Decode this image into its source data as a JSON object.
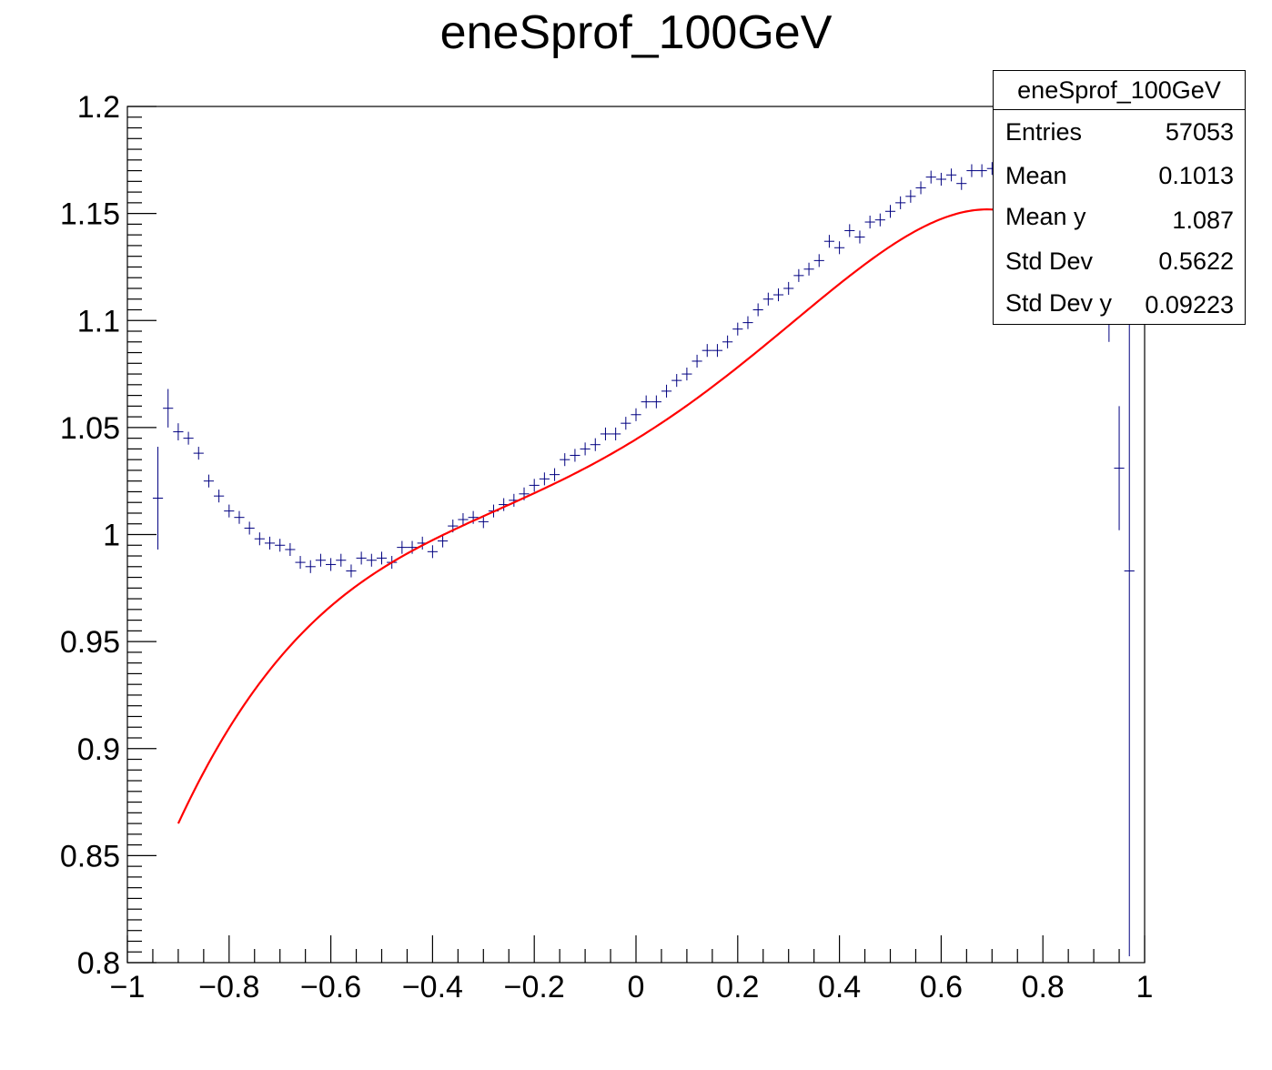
{
  "chart_data": {
    "type": "scatter",
    "title": "eneSprof_100GeV",
    "xlim": [
      -1,
      1
    ],
    "ylim": [
      0.8,
      1.2
    ],
    "x_ticks": [
      "−1",
      "−0.8",
      "−0.6",
      "−0.4",
      "−0.2",
      "0",
      "0.2",
      "0.4",
      "0.6",
      "0.8",
      "1"
    ],
    "y_ticks": [
      "0.8",
      "0.85",
      "0.9",
      "0.95",
      "1",
      "1.05",
      "1.1",
      "1.15",
      "1.2"
    ],
    "profile_color": "#000080",
    "fit_color": "#ff0000",
    "points": [
      [
        -0.94,
        1.017,
        0.024
      ],
      [
        -0.92,
        1.059,
        0.009
      ],
      [
        -0.9,
        1.048,
        0.004
      ],
      [
        -0.88,
        1.045,
        0.003
      ],
      [
        -0.86,
        1.038,
        0.003
      ],
      [
        -0.84,
        1.025,
        0.003
      ],
      [
        -0.82,
        1.018,
        0.003
      ],
      [
        -0.8,
        1.011,
        0.003
      ],
      [
        -0.78,
        1.008,
        0.003
      ],
      [
        -0.76,
        1.003,
        0.003
      ],
      [
        -0.74,
        0.998,
        0.003
      ],
      [
        -0.72,
        0.996,
        0.003
      ],
      [
        -0.7,
        0.995,
        0.003
      ],
      [
        -0.68,
        0.993,
        0.003
      ],
      [
        -0.66,
        0.987,
        0.003
      ],
      [
        -0.64,
        0.985,
        0.003
      ],
      [
        -0.62,
        0.988,
        0.003
      ],
      [
        -0.6,
        0.986,
        0.003
      ],
      [
        -0.58,
        0.988,
        0.003
      ],
      [
        -0.56,
        0.983,
        0.003
      ],
      [
        -0.54,
        0.989,
        0.003
      ],
      [
        -0.52,
        0.988,
        0.003
      ],
      [
        -0.5,
        0.989,
        0.003
      ],
      [
        -0.48,
        0.987,
        0.003
      ],
      [
        -0.46,
        0.994,
        0.003
      ],
      [
        -0.44,
        0.994,
        0.003
      ],
      [
        -0.42,
        0.996,
        0.003
      ],
      [
        -0.4,
        0.992,
        0.003
      ],
      [
        -0.38,
        0.997,
        0.003
      ],
      [
        -0.36,
        1.004,
        0.003
      ],
      [
        -0.34,
        1.007,
        0.003
      ],
      [
        -0.32,
        1.008,
        0.003
      ],
      [
        -0.3,
        1.006,
        0.003
      ],
      [
        -0.28,
        1.011,
        0.003
      ],
      [
        -0.26,
        1.014,
        0.003
      ],
      [
        -0.24,
        1.016,
        0.003
      ],
      [
        -0.22,
        1.019,
        0.003
      ],
      [
        -0.2,
        1.023,
        0.003
      ],
      [
        -0.18,
        1.026,
        0.003
      ],
      [
        -0.16,
        1.028,
        0.003
      ],
      [
        -0.14,
        1.035,
        0.003
      ],
      [
        -0.12,
        1.037,
        0.003
      ],
      [
        -0.1,
        1.04,
        0.003
      ],
      [
        -0.08,
        1.042,
        0.003
      ],
      [
        -0.06,
        1.047,
        0.003
      ],
      [
        -0.04,
        1.047,
        0.003
      ],
      [
        -0.02,
        1.052,
        0.003
      ],
      [
        0.0,
        1.056,
        0.003
      ],
      [
        0.02,
        1.062,
        0.003
      ],
      [
        0.04,
        1.062,
        0.003
      ],
      [
        0.06,
        1.067,
        0.003
      ],
      [
        0.08,
        1.072,
        0.003
      ],
      [
        0.1,
        1.075,
        0.003
      ],
      [
        0.12,
        1.081,
        0.003
      ],
      [
        0.14,
        1.086,
        0.003
      ],
      [
        0.16,
        1.086,
        0.003
      ],
      [
        0.18,
        1.09,
        0.003
      ],
      [
        0.2,
        1.096,
        0.003
      ],
      [
        0.22,
        1.099,
        0.003
      ],
      [
        0.24,
        1.105,
        0.003
      ],
      [
        0.26,
        1.11,
        0.003
      ],
      [
        0.28,
        1.112,
        0.003
      ],
      [
        0.3,
        1.115,
        0.003
      ],
      [
        0.32,
        1.121,
        0.003
      ],
      [
        0.34,
        1.124,
        0.003
      ],
      [
        0.36,
        1.128,
        0.003
      ],
      [
        0.38,
        1.137,
        0.003
      ],
      [
        0.4,
        1.134,
        0.003
      ],
      [
        0.42,
        1.142,
        0.003
      ],
      [
        0.44,
        1.139,
        0.003
      ],
      [
        0.46,
        1.146,
        0.003
      ],
      [
        0.48,
        1.147,
        0.003
      ],
      [
        0.5,
        1.151,
        0.003
      ],
      [
        0.52,
        1.155,
        0.003
      ],
      [
        0.54,
        1.158,
        0.003
      ],
      [
        0.56,
        1.162,
        0.003
      ],
      [
        0.58,
        1.167,
        0.003
      ],
      [
        0.6,
        1.166,
        0.003
      ],
      [
        0.62,
        1.168,
        0.003
      ],
      [
        0.64,
        1.164,
        0.003
      ],
      [
        0.66,
        1.17,
        0.003
      ],
      [
        0.68,
        1.17,
        0.003
      ],
      [
        0.7,
        1.171,
        0.003
      ],
      [
        0.93,
        1.1,
        0.01
      ],
      [
        0.95,
        1.031,
        0.029
      ],
      [
        0.97,
        0.983,
        0.18
      ]
    ],
    "fit_coefficients": [
      1.0445,
      0.146,
      0.1155,
      0.03,
      -0.2245,
      -0.0466
    ],
    "fit_range": [
      -0.9,
      0.86
    ]
  },
  "stats_box": {
    "title": "eneSprof_100GeV",
    "rows": [
      {
        "label": "Entries",
        "value": "57053"
      },
      {
        "label": "Mean",
        "value": "0.1013"
      },
      {
        "label": "Mean y",
        "value": "1.087"
      },
      {
        "label": "Std Dev",
        "value": "0.5622"
      },
      {
        "label": "Std Dev y",
        "value": "0.09223"
      }
    ]
  }
}
